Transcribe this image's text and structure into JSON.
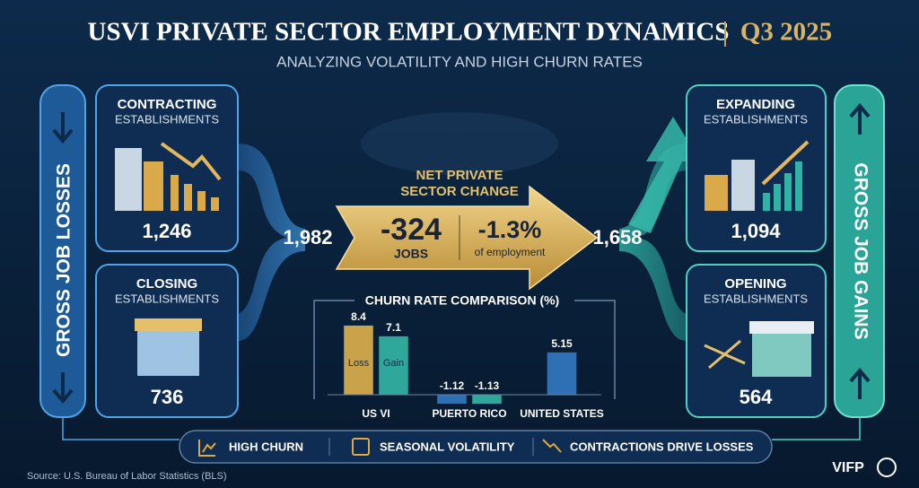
{
  "header": {
    "title": "USVI PRIVATE SECTOR EMPLOYMENT DYNAMICS",
    "period": "Q3 2025",
    "subtitle": "ANALYZING VOLATILITY AND HIGH CHURN RATES"
  },
  "losses": {
    "label": "GROSS JOB LOSSES",
    "total": "1,982",
    "contracting": {
      "title": "CONTRACTING",
      "subtitle": "ESTABLISHMENTS",
      "value": "1,246"
    },
    "closing": {
      "title": "CLOSING",
      "subtitle": "ESTABLISHMENTS",
      "value": "736"
    }
  },
  "gains": {
    "label": "GROSS JOB GAINS",
    "total": "1,658",
    "expanding": {
      "title": "EXPANDING",
      "subtitle": "ESTABLISHMENTS",
      "value": "1,094"
    },
    "opening": {
      "title": "OPENING",
      "subtitle": "ESTABLISHMENTS",
      "value": "564"
    }
  },
  "net": {
    "title_line1": "NET PRIVATE",
    "title_line2": "SECTOR CHANGE",
    "jobs": "-324",
    "jobs_unit": "JOBS",
    "percent": "-1.3%",
    "percent_unit": "of employment"
  },
  "chart_data": {
    "type": "bar",
    "title": "CHURN RATE COMPARISON (%)",
    "categories": [
      "US VI",
      "PUERTO RICO",
      "UNITED STATES"
    ],
    "series": [
      {
        "name": "Loss",
        "colors": [
          "#c9a24a",
          "#2f6fb3",
          "#2f6fb3"
        ],
        "values": [
          8.4,
          -1.12,
          5.15
        ]
      },
      {
        "name": "Gain",
        "colors": [
          "#2fa79a",
          "#2fa79a",
          "#2fa79a"
        ],
        "values": [
          7.1,
          -1.13,
          null
        ]
      }
    ]
  },
  "footer": {
    "items": [
      "HIGH CHURN",
      "SEASONAL VOLATILITY",
      "CONTRACTIONS DRIVE LOSSES"
    ],
    "source": "Source: U.S. Bureau of Labor Statistics (BLS)",
    "logo": "VIFP"
  }
}
